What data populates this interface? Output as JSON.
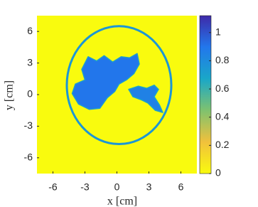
{
  "chart_data": {
    "type": "image",
    "xlabel": "x [cm]",
    "ylabel": "y [cm]",
    "xlim": [
      -7.5,
      7.5
    ],
    "ylim": [
      -7.5,
      7.5
    ],
    "xticks": [
      -6,
      -3,
      0,
      3,
      6
    ],
    "yticks": [
      -6,
      -3,
      0,
      3,
      6
    ],
    "background": 0,
    "regions": [
      {
        "shape": "ring",
        "center": [
          0.2,
          0.9
        ],
        "radius": [
          4.9,
          5.6
        ],
        "value": 0.75
      },
      {
        "shape": "polygon",
        "points": [
          [
            -2.7,
            3.6
          ],
          [
            -1.9,
            3.2
          ],
          [
            -1.2,
            3.7
          ],
          [
            -0.4,
            3.1
          ],
          [
            0.4,
            3.6
          ],
          [
            1.2,
            3.5
          ],
          [
            1.9,
            3.9
          ],
          [
            2.1,
            2.9
          ],
          [
            1.6,
            2.0
          ],
          [
            0.9,
            1.4
          ],
          [
            0.2,
            1.0
          ],
          [
            -0.2,
            0.3
          ],
          [
            -0.9,
            -0.3
          ],
          [
            -1.6,
            -1.3
          ],
          [
            -2.6,
            -1.4
          ],
          [
            -3.6,
            -0.9
          ],
          [
            -4.2,
            0.1
          ],
          [
            -3.9,
            1.0
          ],
          [
            -3.0,
            1.4
          ],
          [
            -3.3,
            2.4
          ]
        ],
        "value": 0.9
      },
      {
        "shape": "polygon",
        "points": [
          [
            1.1,
            0.5
          ],
          [
            2.0,
            0.8
          ],
          [
            2.8,
            0.6
          ],
          [
            3.5,
            0.9
          ],
          [
            3.9,
            0.5
          ],
          [
            3.5,
            -0.2
          ],
          [
            4.0,
            -1.0
          ],
          [
            4.3,
            -1.7
          ],
          [
            3.6,
            -1.5
          ],
          [
            2.9,
            -0.8
          ],
          [
            2.3,
            -0.5
          ],
          [
            1.5,
            -0.2
          ]
        ],
        "value": 0.85
      }
    ],
    "colormap": [
      "#f9fb0e",
      "#f1c13c",
      "#7fc26f",
      "#1aa7c8",
      "#2277ec",
      "#3e2aa8"
    ],
    "clim": [
      0,
      1.12
    ],
    "cticks": [
      0,
      0.2,
      0.4,
      0.6,
      0.8,
      1
    ]
  }
}
